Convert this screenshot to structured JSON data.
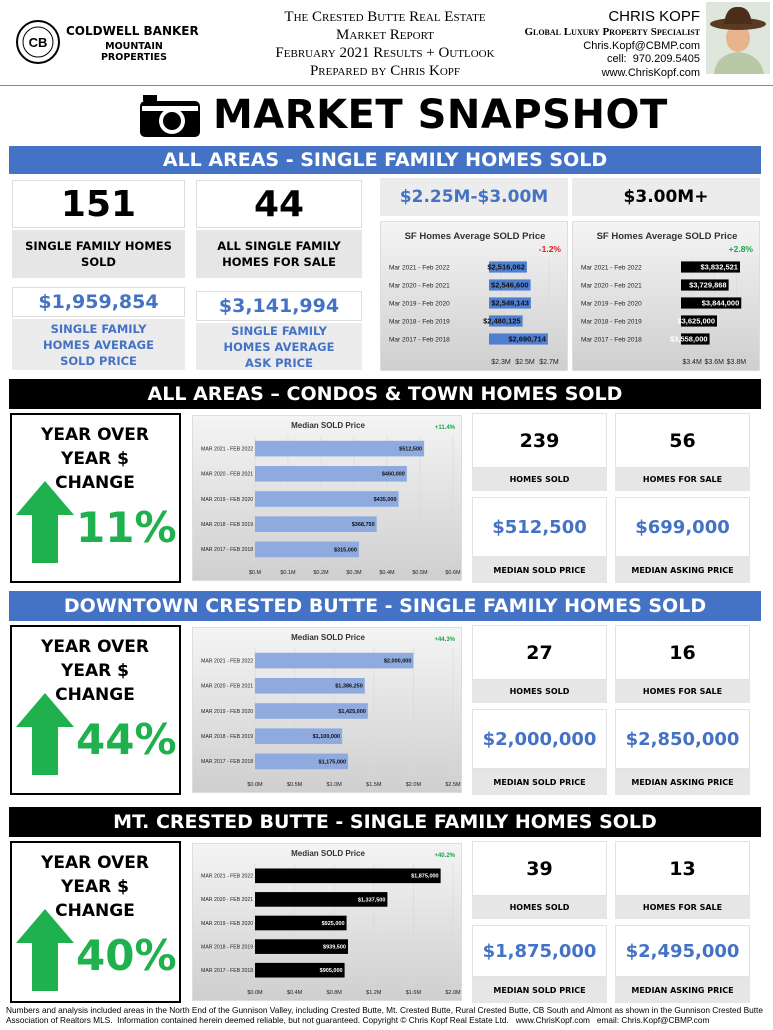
{
  "header": {
    "brand": "COLDWELL BANKER",
    "brand_sub": "MOUNTAIN PROPERTIES",
    "logo_mark": "CB",
    "report_lines": [
      "The Crested Butte Real Estate",
      "Market Report",
      "February 2021 Results + Outlook",
      "Prepared by Chris Kopf"
    ],
    "agent": {
      "name": "CHRIS KOPF",
      "title": "Global Luxury Property Specialist",
      "email": "Chris.Kopf@CBMP.com",
      "cell": "cell:  970.209.5405",
      "web": "www.ChrisKopf.com"
    }
  },
  "title": "MARKET SNAPSHOT",
  "all_areas": {
    "heading": "ALL AREAS - SINGLE FAMILY HOMES SOLD",
    "banner_color": "#4472c4",
    "stats": [
      {
        "value": 151,
        "label": "SINGLE FAMILY HOMES SOLD"
      },
      {
        "value": 44,
        "label": "ALL SINGLE FAMILY HOMES FOR SALE"
      },
      {
        "value": "$1,959,854",
        "label": "SINGLE FAMILY HOMES AVERAGE SOLD PRICE"
      },
      {
        "value": "$3,141,994",
        "label": "SINGLE FAMILY HOMES AVERAGE ASK PRICE"
      }
    ],
    "charts": [
      {
        "type": "bar",
        "range_label": "$2.25M-$3.00M",
        "range_color": "#4472c4",
        "title": "SF Homes Average SOLD Price",
        "change": "-1.2%",
        "change_color": "#e0201b",
        "color": "#4f7fd0",
        "categories": [
          "Mar 2021 - Feb 2022",
          "Mar 2020 - Feb 2021",
          "Mar 2019 - Feb 2020",
          "Mar 2018 - Feb 2019",
          "Mar 2017 - Feb 2018"
        ],
        "values": [
          2516062,
          2546600,
          2549143,
          2480125,
          2690714
        ],
        "value_labels": [
          "$2,516,062",
          "$2,546,600",
          "$2,549,143",
          "$2,480,125",
          "$2,690,714"
        ],
        "xlim": [
          2200000,
          2800000
        ],
        "xticks": [
          {
            "value": 2300000,
            "label": "$2.3M"
          },
          {
            "value": 2500000,
            "label": "$2.5M"
          },
          {
            "value": 2700000,
            "label": "$2.7M"
          }
        ]
      },
      {
        "type": "bar",
        "range_label": "$3.00M+",
        "range_color": "#000000",
        "title": "SF Homes Average SOLD Price",
        "change": "+2.8%",
        "change_color": "#1aa34a",
        "color": "#000000",
        "categories": [
          "Mar 2021 - Feb 2022",
          "Mar 2020 - Feb 2021",
          "Mar 2019 - Feb 2020",
          "Mar 2018 - Feb 2019",
          "Mar 2017 - Feb 2018"
        ],
        "values": [
          3832521,
          3729868,
          3844000,
          3625000,
          3558000
        ],
        "value_labels": [
          "$3,832,521",
          "$3,729,868",
          "$3,844,000",
          "$3,625,000",
          "$3,558,000"
        ],
        "xlim": [
          3300000,
          3950000
        ],
        "xticks": [
          {
            "value": 3400000,
            "label": "$3.4M"
          },
          {
            "value": 3600000,
            "label": "$3.6M"
          },
          {
            "value": 3800000,
            "label": "$3.8M"
          }
        ]
      }
    ]
  },
  "sections": [
    {
      "heading": "ALL AREAS – CONDOS & TOWN HOMES SOLD",
      "banner_color": "#000000",
      "yoy_label": "YEAR OVER YEAR $ CHANGE",
      "yoy_value": "11%",
      "chart": {
        "type": "bar",
        "title": "Median SOLD Price",
        "change": "+11.4%",
        "change_color": "#1aa34a",
        "color": "#8eaadf",
        "categories": [
          "MAR 2021 - FEB 2022",
          "MAR 2020 - FEB 2021",
          "MAR 2019 - FEB 2020",
          "MAR 2018 - FEB 2019",
          "MAR 2017 - FEB 2018"
        ],
        "values": [
          512500,
          460000,
          435000,
          368750,
          315000
        ],
        "value_labels": [
          "$512,500",
          "$460,000",
          "$435,000",
          "$368,750",
          "$315,000"
        ],
        "xlim": [
          0,
          600000
        ],
        "xticks": [
          {
            "value": 0,
            "label": "$0.M"
          },
          {
            "value": 100000,
            "label": "$0.1M"
          },
          {
            "value": 200000,
            "label": "$0.2M"
          },
          {
            "value": 300000,
            "label": "$0.3M"
          },
          {
            "value": 400000,
            "label": "$0.4M"
          },
          {
            "value": 500000,
            "label": "$0.5M"
          },
          {
            "value": 600000,
            "label": "$0.6M"
          }
        ]
      },
      "stats": [
        {
          "value": 239,
          "label": "HOMES SOLD"
        },
        {
          "value": 56,
          "label": "HOMES FOR SALE"
        },
        {
          "value": "$512,500",
          "label": "MEDIAN SOLD PRICE"
        },
        {
          "value": "$699,000",
          "label": "MEDIAN ASKING PRICE"
        }
      ]
    },
    {
      "heading": "DOWNTOWN CRESTED BUTTE - SINGLE FAMILY HOMES SOLD",
      "banner_color": "#4472c4",
      "yoy_label": "YEAR OVER YEAR $ CHANGE",
      "yoy_value": "44%",
      "chart": {
        "type": "bar",
        "title": "Median SOLD Price",
        "change": "+44.3%",
        "change_color": "#1aa34a",
        "color": "#8eaadf",
        "categories": [
          "MAR 2021 - FEB 2022",
          "MAR 2020 - FEB 2021",
          "MAR 2019 - FEB 2020",
          "MAR 2018 - FEB 2019",
          "MAR 2017 - FEB 2018"
        ],
        "values": [
          2000000,
          1386250,
          1425000,
          1100000,
          1175000
        ],
        "value_labels": [
          "$2,000,000",
          "$1,386,250",
          "$1,425,000",
          "$1,100,000",
          "$1,175,000"
        ],
        "xlim": [
          0,
          2500000
        ],
        "xticks": [
          {
            "value": 0,
            "label": "$0.0M"
          },
          {
            "value": 500000,
            "label": "$0.5M"
          },
          {
            "value": 1000000,
            "label": "$1.0M"
          },
          {
            "value": 1500000,
            "label": "$1.5M"
          },
          {
            "value": 2000000,
            "label": "$2.0M"
          },
          {
            "value": 2500000,
            "label": "$2.5M"
          }
        ]
      },
      "stats": [
        {
          "value": 27,
          "label": "HOMES SOLD"
        },
        {
          "value": 16,
          "label": "HOMES FOR SALE"
        },
        {
          "value": "$2,000,000",
          "label": "MEDIAN SOLD PRICE"
        },
        {
          "value": "$2,850,000",
          "label": "MEDIAN ASKING PRICE"
        }
      ]
    },
    {
      "heading": "MT. CRESTED BUTTE - SINGLE FAMILY HOMES SOLD",
      "banner_color": "#000000",
      "yoy_label": "YEAR OVER YEAR $ CHANGE",
      "yoy_value": "40%",
      "chart": {
        "type": "bar",
        "title": "Median SOLD Price",
        "change": "+40.2%",
        "change_color": "#1aa34a",
        "color": "#000000",
        "categories": [
          "MAR 2021 - FEB 2022",
          "MAR 2020 - FEB 2021",
          "MAR 2019 - FEB 2020",
          "MAR 2018 - FEB 2019",
          "MAR 2017 - FEB 2018"
        ],
        "values": [
          1875000,
          1337500,
          925000,
          939500,
          905000
        ],
        "value_labels": [
          "$1,875,000",
          "$1,337,500",
          "$925,000",
          "$939,500",
          "$905,000"
        ],
        "xlim": [
          0,
          2000000
        ],
        "xticks": [
          {
            "value": 0,
            "label": "$0.0M"
          },
          {
            "value": 400000,
            "label": "$0.4M"
          },
          {
            "value": 800000,
            "label": "$0.8M"
          },
          {
            "value": 1200000,
            "label": "$1.2M"
          },
          {
            "value": 1600000,
            "label": "$1.6M"
          },
          {
            "value": 2000000,
            "label": "$2.0M"
          }
        ]
      },
      "stats": [
        {
          "value": 39,
          "label": "HOMES SOLD"
        },
        {
          "value": 13,
          "label": "HOMES FOR SALE"
        },
        {
          "value": "$1,875,000",
          "label": "MEDIAN SOLD PRICE"
        },
        {
          "value": "$2,495,000",
          "label": "MEDIAN ASKING PRICE"
        }
      ]
    }
  ],
  "footer": "Numbers and analysis included areas in the North End of the Gunnison Valley, including Crested Butte, Mt. Crested Butte, Rural Crested Butte, CB South and Almont as shown in the Gunnison Crested Butte Association of Realtors MLS.  Information contained herein deemed reliable, but not guaranteed. Copyright © Chris Kopf Real Estate Ltd.   www.ChrisKopf.com   email: Chris.Kopf@CBMP.com"
}
